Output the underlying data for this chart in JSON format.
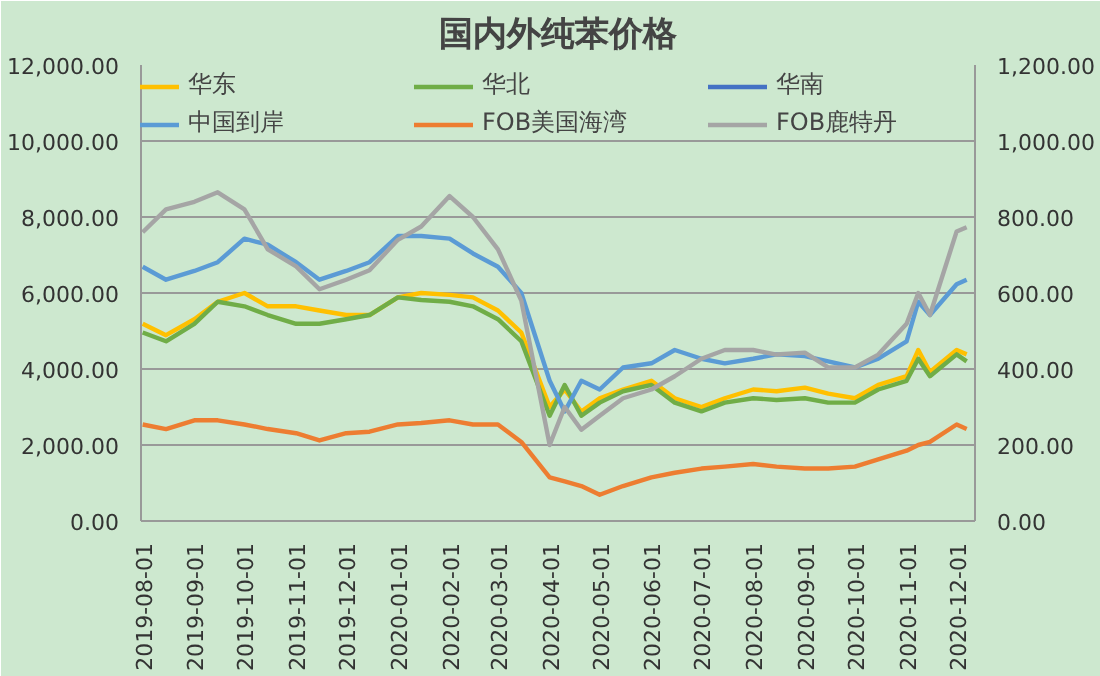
{
  "chart_data": {
    "type": "line",
    "title": "国内外纯苯价格",
    "x": [
      "2019-08-01",
      "2019-08-15",
      "2019-09-01",
      "2019-09-15",
      "2019-10-01",
      "2019-10-15",
      "2019-11-01",
      "2019-11-15",
      "2019-12-01",
      "2019-12-15",
      "2020-01-01",
      "2020-01-15",
      "2020-02-01",
      "2020-02-15",
      "2020-03-01",
      "2020-03-15",
      "2020-04-01",
      "2020-04-10",
      "2020-04-20",
      "2020-05-01",
      "2020-05-15",
      "2020-06-01",
      "2020-06-15",
      "2020-07-01",
      "2020-07-15",
      "2020-08-01",
      "2020-08-15",
      "2020-09-01",
      "2020-09-15",
      "2020-10-01",
      "2020-10-15",
      "2020-11-01",
      "2020-11-08",
      "2020-11-15",
      "2020-12-01",
      "2020-12-07"
    ],
    "series": [
      {
        "name": "华东",
        "color": "#ffc000",
        "values": [
          5190,
          4890,
          5310,
          5770,
          6000,
          5650,
          5650,
          5540,
          5420,
          5420,
          5885,
          6000,
          5950,
          5885,
          5540,
          4960,
          3000,
          3460,
          2880,
          3230,
          3460,
          3690,
          3230,
          3000,
          3230,
          3460,
          3415,
          3510,
          3350,
          3230,
          3580,
          3810,
          4500,
          3920,
          4500,
          4385
        ]
      },
      {
        "name": "华北",
        "color": "#70ad47",
        "values": [
          4960,
          4730,
          5190,
          5770,
          5650,
          5420,
          5190,
          5190,
          5310,
          5420,
          5885,
          5815,
          5770,
          5650,
          5310,
          4730,
          2770,
          3580,
          2770,
          3115,
          3415,
          3580,
          3115,
          2885,
          3115,
          3230,
          3185,
          3230,
          3115,
          3115,
          3460,
          3690,
          4270,
          3810,
          4385,
          4200
        ]
      },
      {
        "name": "华南",
        "color": "#4472c4",
        "values": [
          null,
          null,
          null,
          null,
          null,
          null,
          null,
          null,
          null,
          null,
          null,
          null,
          null,
          null,
          null,
          null,
          null,
          null,
          null,
          null,
          null,
          null,
          null,
          null,
          null,
          null,
          null,
          null,
          null,
          null,
          null,
          null,
          null,
          null,
          null,
          null
        ]
      },
      {
        "name": "中国到岸",
        "color": "#5b9bd5",
        "values": [
          6690,
          6350,
          6580,
          6810,
          7430,
          7270,
          6810,
          6350,
          6580,
          6810,
          7500,
          7500,
          7430,
          7040,
          6690,
          6000,
          3690,
          2880,
          3690,
          3460,
          4040,
          4150,
          4500,
          4270,
          4150,
          4270,
          4385,
          4340,
          4200,
          4040,
          4270,
          4730,
          5770,
          5420,
          6230,
          6350
        ]
      },
      {
        "name": "FOB美国海湾",
        "color": "#ed7d31",
        "axis": "y2",
        "values": [
          254,
          242,
          265,
          265,
          254,
          242,
          231,
          212,
          231,
          235,
          254,
          258,
          265,
          254,
          254,
          208,
          115,
          104,
          92,
          69,
          92,
          115,
          127,
          138,
          143,
          150,
          143,
          138,
          138,
          143,
          162,
          185,
          200,
          208,
          254,
          242
        ]
      },
      {
        "name": "FOB鹿特丹",
        "color": "#a5a5a5",
        "axis": "y2",
        "values": [
          760,
          820,
          840,
          865,
          820,
          715,
          670,
          610,
          635,
          660,
          740,
          775,
          855,
          800,
          715,
          580,
          200,
          300,
          240,
          277,
          323,
          346,
          381,
          427,
          450,
          450,
          438,
          443,
          404,
          404,
          438,
          519,
          600,
          542,
          762,
          773
        ]
      }
    ],
    "xlim": [
      "2019-07-31",
      "2020-12-12"
    ],
    "xticks": [
      "2019-08-01",
      "2019-09-01",
      "2019-10-01",
      "2019-11-01",
      "2019-12-01",
      "2020-01-01",
      "2020-02-01",
      "2020-03-01",
      "2020-04-01",
      "2020-05-01",
      "2020-06-01",
      "2020-07-01",
      "2020-08-01",
      "2020-09-01",
      "2020-10-01",
      "2020-11-01",
      "2020-12-01"
    ],
    "ylim": [
      0,
      12000
    ],
    "yticks": [
      {
        "value": 0,
        "label": "0.00"
      },
      {
        "value": 2000,
        "label": "2,000.00"
      },
      {
        "value": 4000,
        "label": "4,000.00"
      },
      {
        "value": 6000,
        "label": "6,000.00"
      },
      {
        "value": 8000,
        "label": "8,000.00"
      },
      {
        "value": 10000,
        "label": "10,000.00"
      },
      {
        "value": 12000,
        "label": "12,000.00"
      }
    ],
    "y2lim": [
      0,
      1200
    ],
    "y2ticks": [
      {
        "value": 0,
        "label": "0.00"
      },
      {
        "value": 200,
        "label": "200.00"
      },
      {
        "value": 400,
        "label": "400.00"
      },
      {
        "value": 600,
        "label": "600.00"
      },
      {
        "value": 800,
        "label": "800.00"
      },
      {
        "value": 1000,
        "label": "1,000.00"
      },
      {
        "value": 1200,
        "label": "1,200.00"
      }
    ],
    "grid": "y",
    "legend": "top",
    "marker": "none",
    "line_style": "solid"
  }
}
